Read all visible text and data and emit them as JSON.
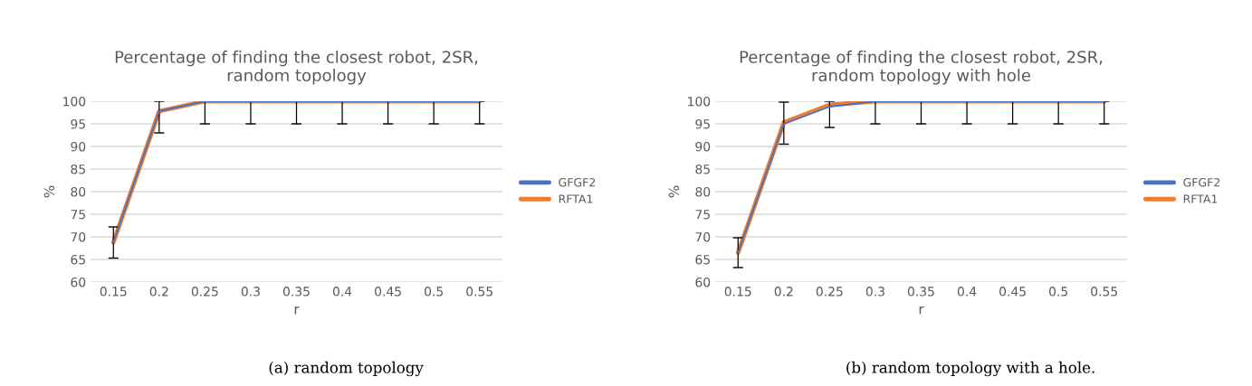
{
  "chart_data": [
    {
      "type": "line",
      "title": "Percentage of finding the closest robot, 2SR,\nrandom topology",
      "xlabel": "r",
      "ylabel": "%",
      "categories": [
        "0.15",
        "0.2",
        "0.25",
        "0.3",
        "0.35",
        "0.4",
        "0.45",
        "0.5",
        "0.55"
      ],
      "series": [
        {
          "name": "RFTA1",
          "color": "#ed7d31",
          "values": [
            68.8,
            97.8,
            100,
            100,
            100,
            100,
            100,
            100,
            100
          ],
          "errors": [
            [
              65.3,
              72.2
            ],
            [
              93,
              100
            ],
            [
              95,
              100
            ],
            [
              95,
              100
            ],
            [
              95,
              100
            ],
            [
              95,
              100
            ],
            [
              95,
              100
            ],
            [
              95,
              100
            ],
            [
              95,
              100
            ]
          ]
        },
        {
          "name": "GFGF2",
          "color": "#4472c4",
          "values": [
            68.8,
            97.8,
            100,
            100,
            100,
            100,
            100,
            100,
            100
          ]
        }
      ],
      "ylim": [
        60,
        100
      ],
      "yticks": [
        60,
        65,
        70,
        75,
        80,
        85,
        90,
        95,
        100
      ],
      "grid": "y",
      "legend": "right",
      "annotations": [
        "(a) random topology"
      ]
    },
    {
      "type": "line",
      "title": "Percentage of finding the closest robot, 2SR,\nrandom topology with hole",
      "xlabel": "r",
      "ylabel": "%",
      "categories": [
        "0.15",
        "0.2",
        "0.25",
        "0.3",
        "0.35",
        "0.4",
        "0.45",
        "0.5",
        "0.55"
      ],
      "series": [
        {
          "name": "RFTA1",
          "color": "#ed7d31",
          "values": [
            66.5,
            95.3,
            99.2,
            100,
            100,
            100,
            100,
            100,
            100
          ],
          "errors": [
            [
              63.2,
              69.8
            ],
            [
              90.5,
              99.8
            ],
            [
              94.2,
              100
            ],
            [
              95,
              100
            ],
            [
              95,
              100
            ],
            [
              95,
              100
            ],
            [
              95,
              100
            ],
            [
              95,
              100
            ],
            [
              95,
              100
            ]
          ]
        },
        {
          "name": "GFGF2",
          "color": "#4472c4",
          "values": [
            66.5,
            95.0,
            98.8,
            100,
            100,
            100,
            100,
            100,
            100
          ]
        }
      ],
      "ylim": [
        60,
        100
      ],
      "yticks": [
        60,
        65,
        70,
        75,
        80,
        85,
        90,
        95,
        100
      ],
      "grid": "y",
      "legend": "right",
      "annotations": [
        "(b) random topology with a hole."
      ]
    }
  ]
}
